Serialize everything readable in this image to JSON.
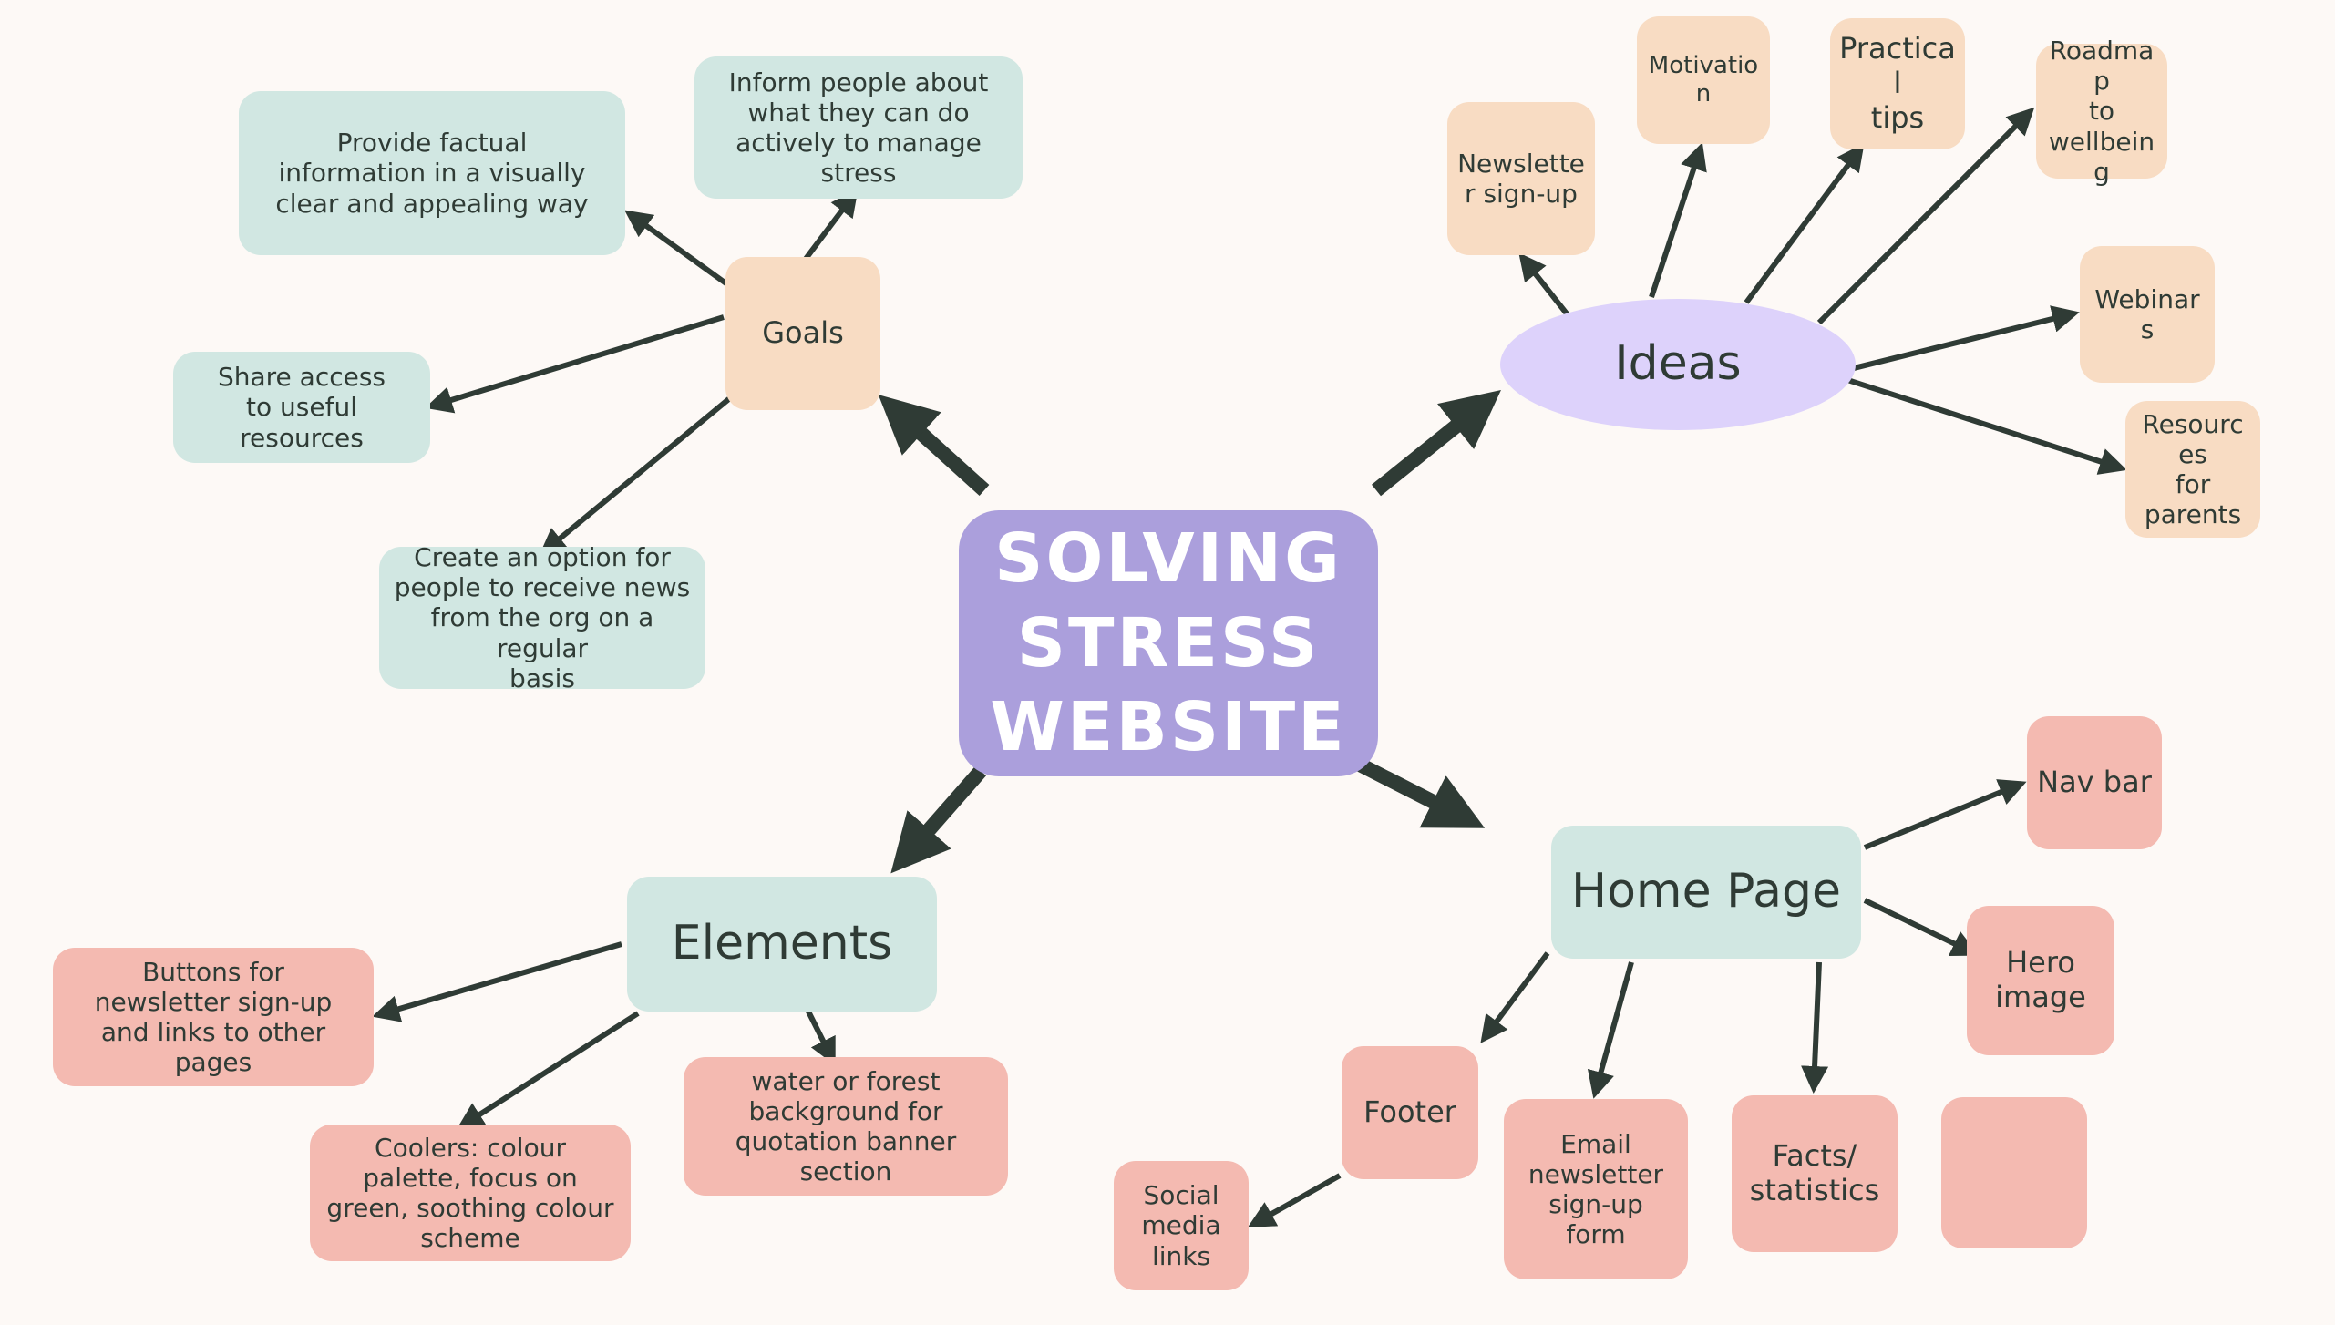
{
  "colors": {
    "background": "#fdf9f6",
    "center": "#ab9fdc",
    "teal": "#d1e7e2",
    "peach": "#f8dcc3",
    "pink": "#f4bab1",
    "lavender": "#ddd2fb",
    "arrow": "#2f3b35"
  },
  "center": {
    "text": "SOLVING\nSTRESS\nWEBSITE"
  },
  "goals": {
    "label": "Goals",
    "items": [
      "Provide factual\ninformation in a visually\nclear and appealing way",
      "Inform people about\nwhat they can do\nactively to manage\nstress",
      "Share access\nto useful\nresources",
      "Create an option for\npeople to receive news\nfrom the org on a regular\nbasis"
    ]
  },
  "ideas": {
    "label": "Ideas",
    "items": [
      "Newslette\nr sign-up",
      "Motivation",
      "Practical\ntips",
      "Roadmap\nto\nwellbeing",
      "Webinars",
      "Resources\nfor\nparents"
    ]
  },
  "elements": {
    "label": "Elements",
    "items": [
      "Buttons for\nnewsletter sign-up\nand links to other\npages",
      "Coolers: colour\npalette, focus on\ngreen, soothing colour\nscheme",
      "water or forest\nbackground for\nquotation banner\nsection"
    ]
  },
  "home_page": {
    "label": "Home Page",
    "items": [
      "Nav bar",
      "Hero image",
      "Footer",
      "Email\nnewsletter\nsign-up\nform",
      "Facts/\nstatistics",
      ""
    ],
    "footer_child": "Social\nmedia\nlinks"
  }
}
